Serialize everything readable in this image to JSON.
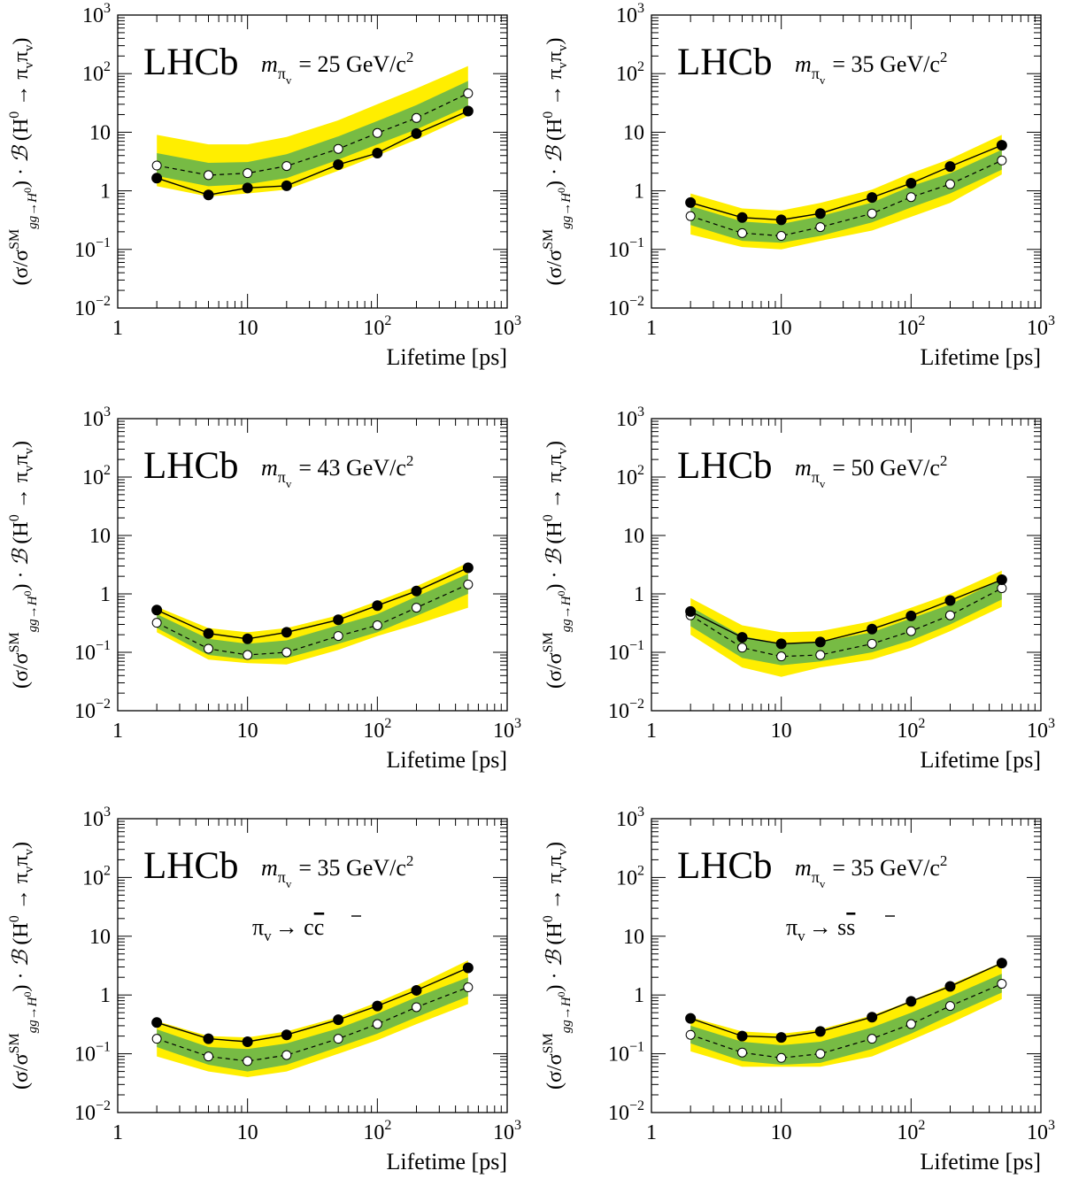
{
  "colors": {
    "band_2sigma": "#ffee00",
    "band_1sigma": "#77bb44",
    "observed_line": "#000000",
    "expected_line": "#000000"
  },
  "chart_data": [
    {
      "type": "line",
      "experiment": "LHCb",
      "mass_label": "= 25 GeV/c",
      "mass_label_sup": "2",
      "decay_label": "",
      "decay_bar": "",
      "x_scale": "log",
      "y_scale": "log",
      "xlabel": "Lifetime [ps]",
      "xlim": [
        1,
        1000
      ],
      "ylim": [
        0.01,
        1000
      ],
      "x": [
        2,
        5,
        10,
        20,
        50,
        100,
        200,
        500
      ],
      "observed": [
        1.65,
        0.85,
        1.12,
        1.22,
        2.8,
        4.4,
        9.5,
        23
      ],
      "expected": [
        2.7,
        1.85,
        2.0,
        2.65,
        5.2,
        9.7,
        17.5,
        46
      ],
      "band_1sigma_low": [
        1.8,
        1.2,
        1.3,
        1.65,
        3.4,
        6.2,
        11.2,
        28
      ],
      "band_1sigma_high": [
        4.4,
        3.0,
        3.1,
        4.2,
        8.5,
        15.5,
        29,
        75
      ],
      "band_2sigma_low": [
        1.2,
        0.8,
        0.9,
        1.05,
        2.2,
        4.0,
        7.5,
        19
      ],
      "band_2sigma_high": [
        9.0,
        6.2,
        6.2,
        8.3,
        16,
        30,
        56,
        135
      ]
    },
    {
      "type": "line",
      "experiment": "LHCb",
      "mass_label": "= 35 GeV/c",
      "mass_label_sup": "2",
      "decay_label": "",
      "decay_bar": "",
      "x_scale": "log",
      "y_scale": "log",
      "xlabel": "Lifetime [ps]",
      "xlim": [
        1,
        1000
      ],
      "ylim": [
        0.01,
        1000
      ],
      "x": [
        2,
        5,
        10,
        20,
        50,
        100,
        200,
        500
      ],
      "observed": [
        0.63,
        0.35,
        0.32,
        0.41,
        0.77,
        1.35,
        2.6,
        6.0
      ],
      "expected": [
        0.37,
        0.19,
        0.17,
        0.24,
        0.41,
        0.78,
        1.3,
        3.3
      ],
      "band_1sigma_low": [
        0.26,
        0.14,
        0.13,
        0.17,
        0.29,
        0.52,
        0.9,
        2.3
      ],
      "band_1sigma_high": [
        0.55,
        0.3,
        0.27,
        0.37,
        0.63,
        1.2,
        2.0,
        5.0
      ],
      "band_2sigma_low": [
        0.18,
        0.11,
        0.1,
        0.14,
        0.21,
        0.36,
        0.62,
        1.9
      ],
      "band_2sigma_high": [
        0.9,
        0.5,
        0.46,
        0.62,
        1.05,
        2.0,
        3.5,
        9.0
      ]
    },
    {
      "type": "line",
      "experiment": "LHCb",
      "mass_label": "= 43 GeV/c",
      "mass_label_sup": "2",
      "decay_label": "",
      "decay_bar": "",
      "x_scale": "log",
      "y_scale": "log",
      "xlabel": "Lifetime [ps]",
      "xlim": [
        1,
        1000
      ],
      "ylim": [
        0.01,
        1000
      ],
      "x": [
        2,
        5,
        10,
        20,
        50,
        100,
        200,
        500
      ],
      "observed": [
        0.53,
        0.21,
        0.17,
        0.22,
        0.36,
        0.63,
        1.12,
        2.8
      ],
      "expected": [
        0.32,
        0.115,
        0.09,
        0.1,
        0.19,
        0.29,
        0.58,
        1.45
      ],
      "band_1sigma_low": [
        0.26,
        0.09,
        0.075,
        0.08,
        0.14,
        0.22,
        0.42,
        1.0
      ],
      "band_1sigma_high": [
        0.45,
        0.17,
        0.14,
        0.16,
        0.29,
        0.45,
        0.9,
        2.2
      ],
      "band_2sigma_low": [
        0.22,
        0.075,
        0.065,
        0.062,
        0.11,
        0.19,
        0.3,
        0.58
      ],
      "band_2sigma_high": [
        0.6,
        0.26,
        0.22,
        0.26,
        0.43,
        0.75,
        1.35,
        3.4
      ]
    },
    {
      "type": "line",
      "experiment": "LHCb",
      "mass_label": "= 50 GeV/c",
      "mass_label_sup": "2",
      "decay_label": "",
      "decay_bar": "",
      "x_scale": "log",
      "y_scale": "log",
      "xlabel": "Lifetime [ps]",
      "xlim": [
        1,
        1000
      ],
      "ylim": [
        0.01,
        1000
      ],
      "x": [
        2,
        5,
        10,
        20,
        50,
        100,
        200,
        500
      ],
      "observed": [
        0.5,
        0.18,
        0.14,
        0.15,
        0.25,
        0.42,
        0.77,
        1.75
      ],
      "expected": [
        0.43,
        0.12,
        0.085,
        0.09,
        0.14,
        0.23,
        0.43,
        1.25
      ],
      "band_1sigma_low": [
        0.28,
        0.08,
        0.06,
        0.07,
        0.1,
        0.16,
        0.3,
        0.8
      ],
      "band_1sigma_high": [
        0.6,
        0.19,
        0.14,
        0.15,
        0.22,
        0.38,
        0.66,
        1.8
      ],
      "band_2sigma_low": [
        0.2,
        0.055,
        0.038,
        0.055,
        0.075,
        0.12,
        0.23,
        0.6
      ],
      "band_2sigma_high": [
        0.85,
        0.29,
        0.22,
        0.23,
        0.34,
        0.58,
        1.0,
        2.5
      ]
    },
    {
      "type": "line",
      "experiment": "LHCb",
      "mass_label": "= 35 GeV/c",
      "mass_label_sup": "2",
      "decay_label": "→ c",
      "decay_bar": "c",
      "x_scale": "log",
      "y_scale": "log",
      "xlabel": "Lifetime [ps]",
      "xlim": [
        1,
        1000
      ],
      "ylim": [
        0.01,
        1000
      ],
      "x": [
        2,
        5,
        10,
        20,
        50,
        100,
        200,
        500
      ],
      "observed": [
        0.34,
        0.18,
        0.16,
        0.21,
        0.38,
        0.65,
        1.2,
        2.9
      ],
      "expected": [
        0.18,
        0.09,
        0.075,
        0.095,
        0.18,
        0.32,
        0.62,
        1.35
      ],
      "band_1sigma_low": [
        0.13,
        0.065,
        0.05,
        0.065,
        0.13,
        0.22,
        0.42,
        0.95
      ],
      "band_1sigma_high": [
        0.26,
        0.13,
        0.12,
        0.15,
        0.27,
        0.48,
        0.92,
        2.0
      ],
      "band_2sigma_low": [
        0.09,
        0.05,
        0.04,
        0.05,
        0.1,
        0.17,
        0.32,
        0.7
      ],
      "band_2sigma_high": [
        0.36,
        0.2,
        0.19,
        0.24,
        0.42,
        0.75,
        1.45,
        3.9
      ]
    },
    {
      "type": "line",
      "experiment": "LHCb",
      "mass_label": "= 35 GeV/c",
      "mass_label_sup": "2",
      "decay_label": "→ s",
      "decay_bar": "s",
      "x_scale": "log",
      "y_scale": "log",
      "xlabel": "Lifetime [ps]",
      "xlim": [
        1,
        1000
      ],
      "ylim": [
        0.01,
        1000
      ],
      "x": [
        2,
        5,
        10,
        20,
        50,
        100,
        200,
        500
      ],
      "observed": [
        0.4,
        0.2,
        0.19,
        0.24,
        0.42,
        0.78,
        1.4,
        3.5
      ],
      "expected": [
        0.21,
        0.105,
        0.085,
        0.1,
        0.18,
        0.32,
        0.65,
        1.55
      ],
      "band_1sigma_low": [
        0.15,
        0.075,
        0.065,
        0.07,
        0.12,
        0.22,
        0.45,
        1.1
      ],
      "band_1sigma_high": [
        0.3,
        0.16,
        0.14,
        0.16,
        0.28,
        0.5,
        0.95,
        2.3
      ],
      "band_2sigma_low": [
        0.11,
        0.06,
        0.06,
        0.06,
        0.09,
        0.17,
        0.33,
        0.85
      ],
      "band_2sigma_high": [
        0.42,
        0.24,
        0.22,
        0.26,
        0.45,
        0.8,
        1.5,
        3.6
      ]
    }
  ]
}
